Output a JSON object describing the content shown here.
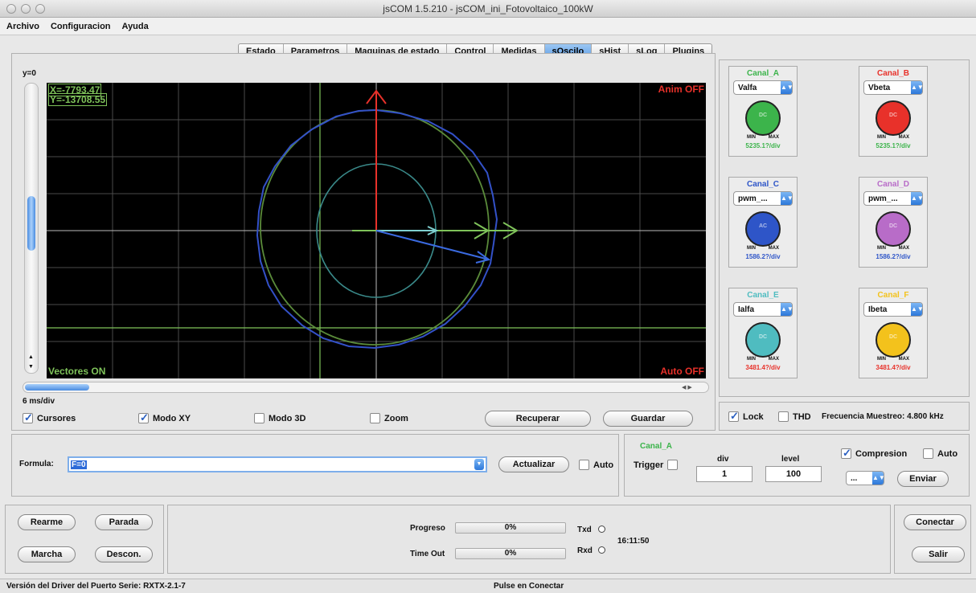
{
  "window": {
    "title": "jsCOM 1.5.210 - jsCOM_ini_Fotovoltaico_100kW"
  },
  "menu": [
    "Archivo",
    "Configuracion",
    "Ayuda"
  ],
  "tabs": [
    "Estado",
    "Parametros",
    "Maquinas de estado",
    "Control",
    "Medidas",
    "sOscilo",
    "sHist",
    "sLog",
    "Plugins"
  ],
  "active_tab": "sOscilo",
  "scope": {
    "y_label": "y=0",
    "cursor_x": "X=-7793.47",
    "cursor_y": "Y=-13708.55",
    "anim": "Anim OFF",
    "auto": "Auto OFF",
    "vectores": "Vectores ON",
    "time_div": "6 ms/div"
  },
  "scope_options": {
    "cursores": "Cursores",
    "modo_xy": "Modo XY",
    "modo_3d": "Modo 3D",
    "zoom": "Zoom",
    "recuperar": "Recuperar",
    "guardar": "Guardar"
  },
  "channels": [
    {
      "title": "Canal_A",
      "signal": "Valfa",
      "knob": "DC",
      "perdiv": "5235.1?/div",
      "color": "#3cb44b"
    },
    {
      "title": "Canal_B",
      "signal": "Vbeta",
      "knob": "DC",
      "perdiv": "5235.1?/div",
      "color": "#e8312a"
    },
    {
      "title": "Canal_C",
      "signal": "pwm_...",
      "knob": "AC",
      "perdiv": "1586.2?/div",
      "color": "#2e55c8"
    },
    {
      "title": "Canal_D",
      "signal": "pwm_...",
      "knob": "DC",
      "perdiv": "1586.2?/div",
      "color": "#b86cc8"
    },
    {
      "title": "Canal_E",
      "signal": "Ialfa",
      "knob": "DC",
      "perdiv": "3481.4?/div",
      "color": "#4fbcc0"
    },
    {
      "title": "Canal_F",
      "signal": "Ibeta",
      "knob": "DC",
      "perdiv": "3481.4?/div",
      "color": "#f3c21c"
    }
  ],
  "right_options": {
    "lock": "Lock",
    "thd": "THD",
    "frecuencia": "Frecuencia Muestreo: 4.800 kHz"
  },
  "formula": {
    "label": "Formula:",
    "value": "F=0",
    "actualizar": "Actualizar",
    "auto": "Auto"
  },
  "trigger": {
    "channel": "Canal_A",
    "trigger_label": "Trigger",
    "div_label": "div",
    "div_value": "1",
    "level_label": "level",
    "level_value": "100",
    "compresion": "Compresion",
    "auto": "Auto",
    "select": "...",
    "enviar": "Enviar"
  },
  "controls": {
    "rearme": "Rearme",
    "parada": "Parada",
    "marcha": "Marcha",
    "descon": "Descon."
  },
  "progress": {
    "progreso_label": "Progreso",
    "progreso_value": "0%",
    "timeout_label": "Time Out",
    "timeout_value": "0%",
    "txd": "Txd",
    "rxd": "Rxd",
    "time": "16:11:50"
  },
  "right_buttons": {
    "conectar": "Conectar",
    "salir": "Salir"
  },
  "status": {
    "driver": "Versión del Driver del Puerto Serie: RXTX-2.1-7",
    "message": "Pulse en Conectar"
  }
}
